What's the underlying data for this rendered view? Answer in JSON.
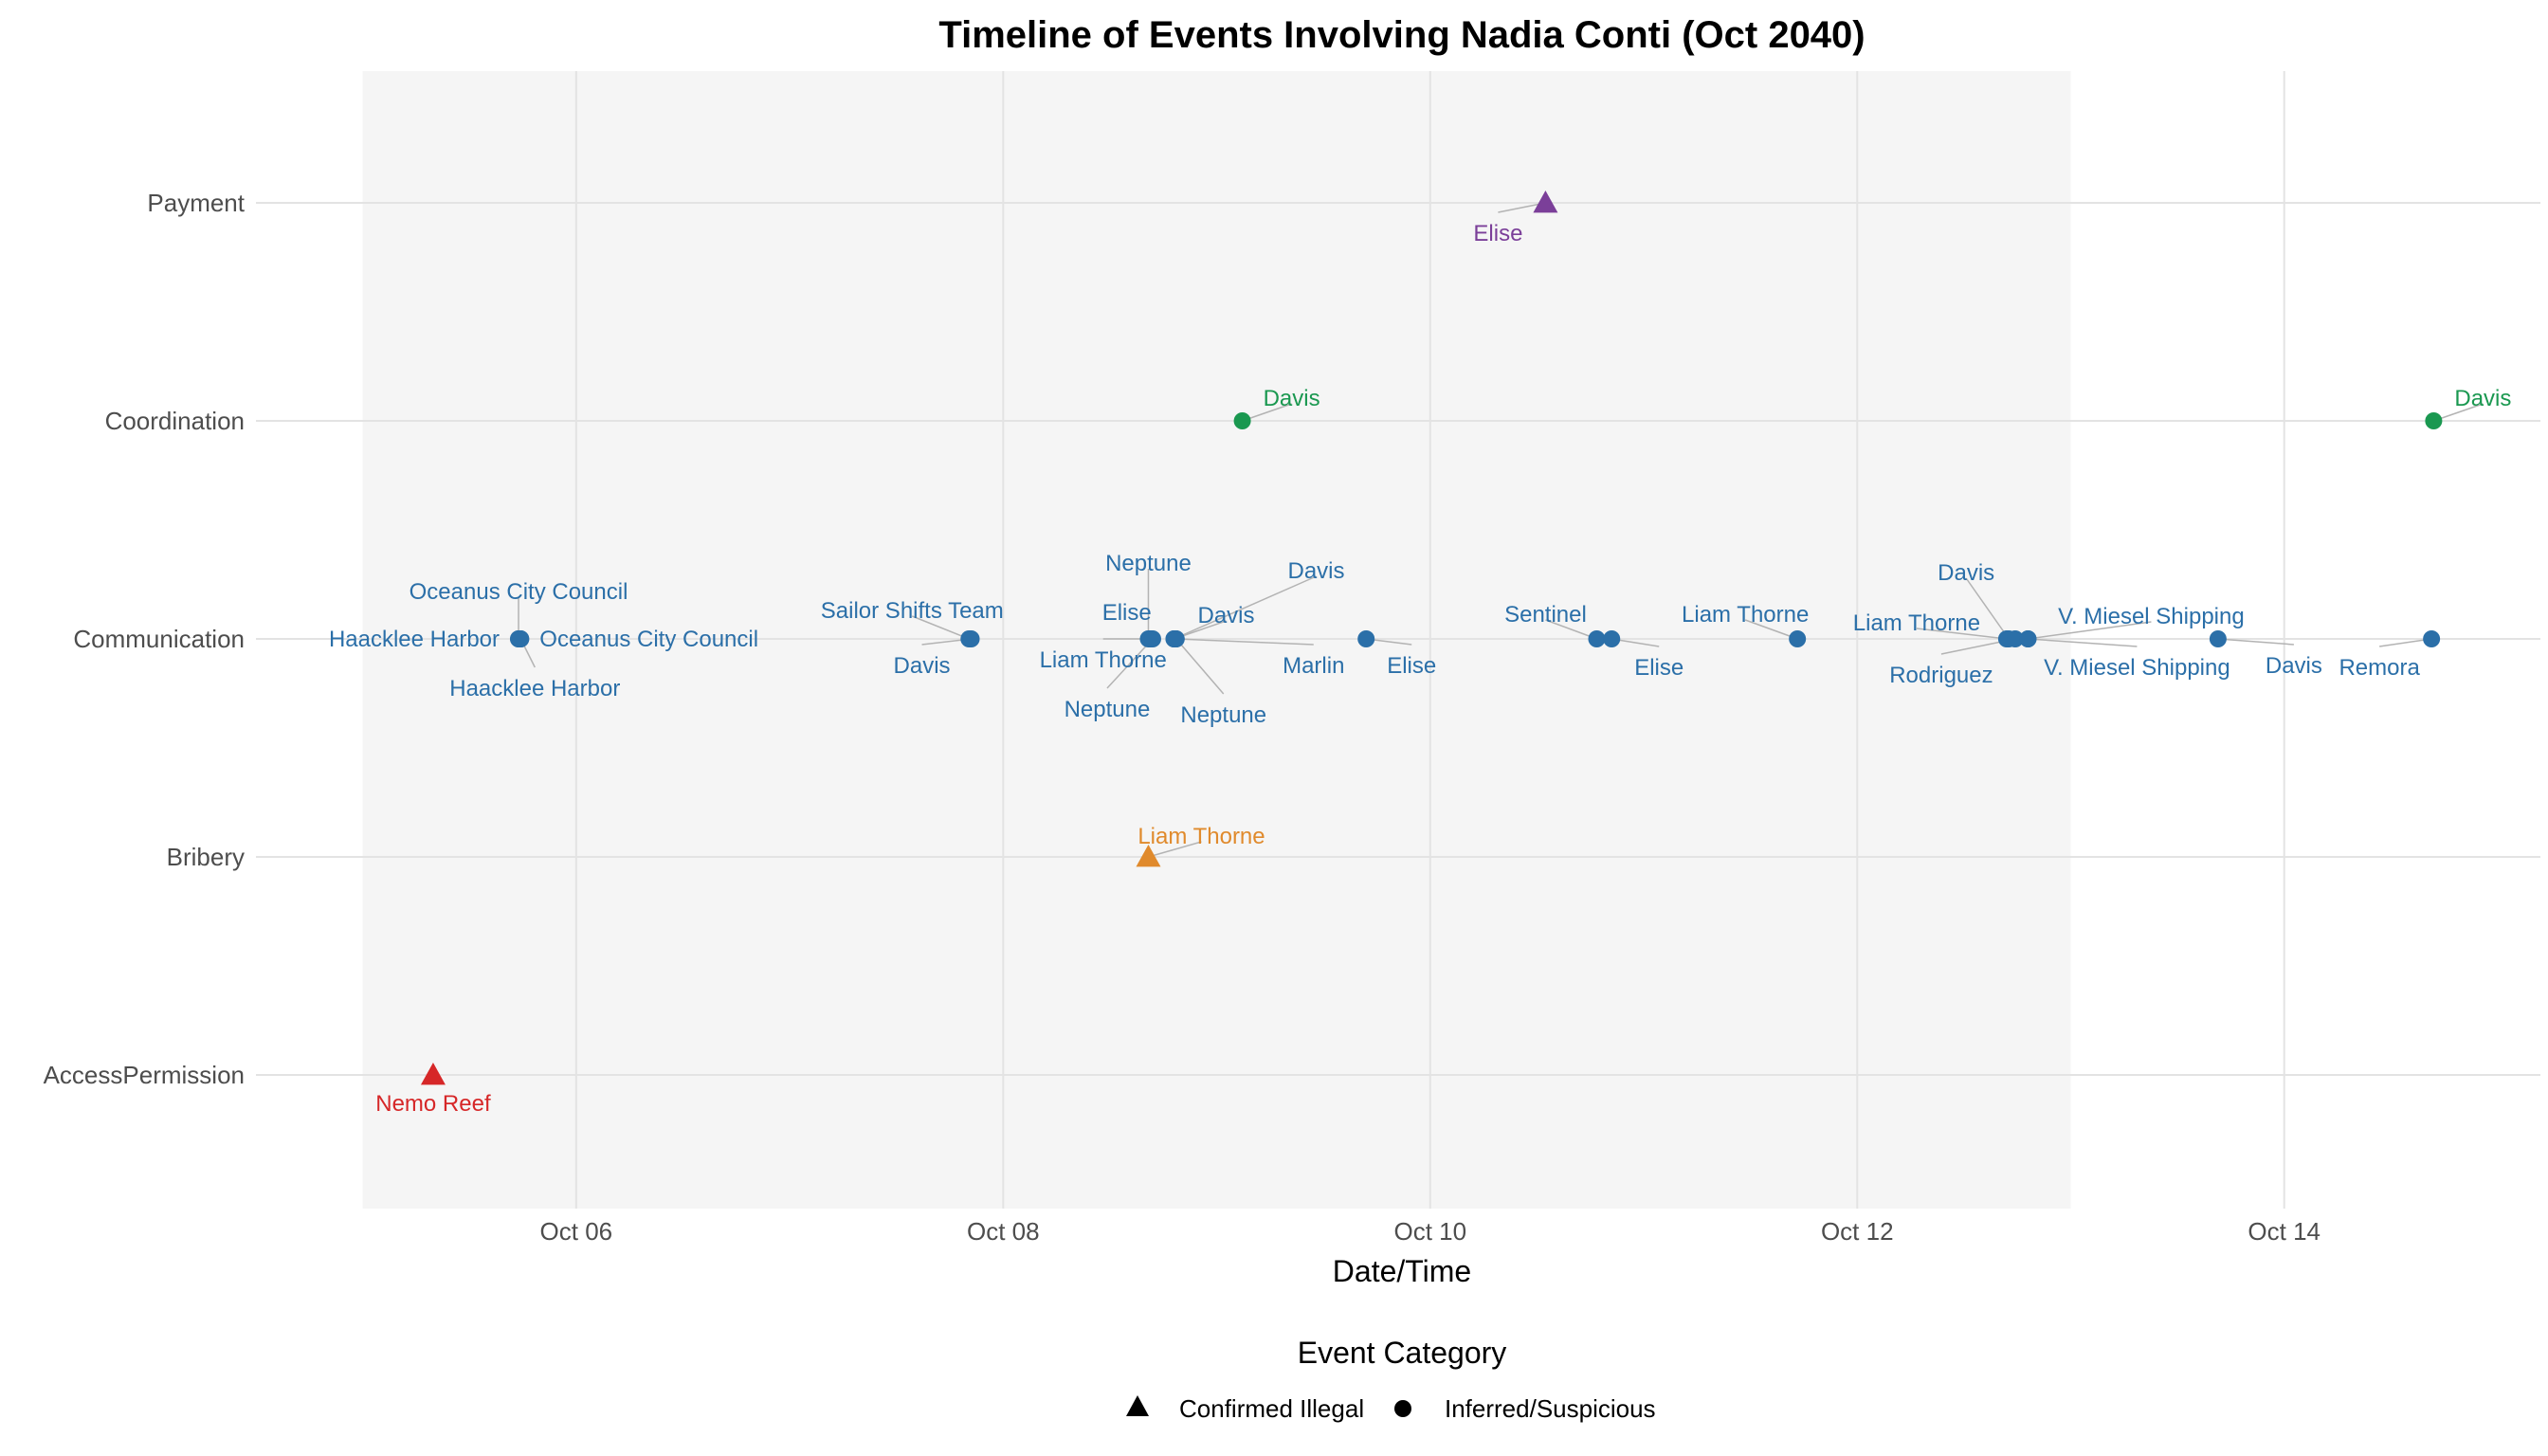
{
  "chart_data": {
    "type": "scatter",
    "title": "Timeline of Events Involving Nadia Conti (Oct 2040)",
    "xlabel": "Date/Time",
    "ylabel": "",
    "x_ticks": [
      "Oct 06",
      "Oct 08",
      "Oct 10",
      "Oct 12",
      "Oct 14"
    ],
    "x_tick_days": [
      6,
      8,
      10,
      12,
      14
    ],
    "xlim_days": [
      4.5,
      15.2
    ],
    "highlight_range_days": [
      5.0,
      13.0
    ],
    "categories": [
      "Payment",
      "Coordination",
      "Communication",
      "Bribery",
      "AccessPermission"
    ],
    "legend": {
      "title": "Event Category",
      "position": "bottom",
      "items": [
        {
          "label": "Confirmed Illegal",
          "shape": "triangle"
        },
        {
          "label": "Inferred/Suspicious",
          "shape": "circle"
        }
      ]
    },
    "colors": {
      "Payment": "#7b3f99",
      "Coordination": "#1a9850",
      "Communication": "#2b6fa8",
      "Bribery": "#e08a2c",
      "AccessPermission": "#d62728",
      "panel_bg": "#f5f5f5",
      "grid": "#e3e3e3",
      "leader": "#b3b3b3"
    },
    "grid": true,
    "points": [
      {
        "day": 5.33,
        "category": "AccessPermission",
        "shape": "triangle",
        "label": "Nemo Reef"
      },
      {
        "day": 5.73,
        "category": "Communication",
        "shape": "circle",
        "label": "Haacklee Harbor"
      },
      {
        "day": 5.73,
        "category": "Communication",
        "shape": "circle",
        "label": "Oceanus City Council"
      },
      {
        "day": 5.74,
        "category": "Communication",
        "shape": "circle",
        "label": "Oceanus City Council"
      },
      {
        "day": 5.74,
        "category": "Communication",
        "shape": "circle",
        "label": "Haacklee Harbor"
      },
      {
        "day": 7.84,
        "category": "Communication",
        "shape": "circle",
        "label": "Sailor Shifts Team"
      },
      {
        "day": 7.85,
        "category": "Communication",
        "shape": "circle",
        "label": "Davis"
      },
      {
        "day": 8.68,
        "category": "Bribery",
        "shape": "triangle",
        "label": "Liam Thorne"
      },
      {
        "day": 8.68,
        "category": "Communication",
        "shape": "circle",
        "label": "Neptune"
      },
      {
        "day": 8.69,
        "category": "Communication",
        "shape": "circle",
        "label": "Elise"
      },
      {
        "day": 8.69,
        "category": "Communication",
        "shape": "circle",
        "label": "Liam Thorne"
      },
      {
        "day": 8.7,
        "category": "Communication",
        "shape": "circle",
        "label": "Neptune"
      },
      {
        "day": 8.8,
        "category": "Communication",
        "shape": "circle",
        "label": "Davis"
      },
      {
        "day": 8.8,
        "category": "Communication",
        "shape": "circle",
        "label": "Davis"
      },
      {
        "day": 8.81,
        "category": "Communication",
        "shape": "circle",
        "label": "Marlin"
      },
      {
        "day": 8.81,
        "category": "Communication",
        "shape": "circle",
        "label": "Neptune"
      },
      {
        "day": 9.12,
        "category": "Coordination",
        "shape": "circle",
        "label": "Davis"
      },
      {
        "day": 9.7,
        "category": "Communication",
        "shape": "circle",
        "label": "Elise"
      },
      {
        "day": 10.54,
        "category": "Payment",
        "shape": "triangle",
        "label": "Elise"
      },
      {
        "day": 10.78,
        "category": "Communication",
        "shape": "circle",
        "label": "Sentinel"
      },
      {
        "day": 10.85,
        "category": "Communication",
        "shape": "circle",
        "label": "Elise"
      },
      {
        "day": 11.72,
        "category": "Communication",
        "shape": "circle",
        "label": "Liam Thorne"
      },
      {
        "day": 12.7,
        "category": "Communication",
        "shape": "circle",
        "label": "Liam Thorne"
      },
      {
        "day": 12.71,
        "category": "Communication",
        "shape": "circle",
        "label": "Davis"
      },
      {
        "day": 12.74,
        "category": "Communication",
        "shape": "circle",
        "label": "Rodriguez"
      },
      {
        "day": 12.8,
        "category": "Communication",
        "shape": "circle",
        "label": "V. Miesel Shipping"
      },
      {
        "day": 12.8,
        "category": "Communication",
        "shape": "circle",
        "label": "V. Miesel Shipping"
      },
      {
        "day": 13.69,
        "category": "Communication",
        "shape": "circle",
        "label": "Davis"
      },
      {
        "day": 14.69,
        "category": "Communication",
        "shape": "circle",
        "label": "Remora"
      },
      {
        "day": 14.7,
        "category": "Coordination",
        "shape": "circle",
        "label": "Davis"
      }
    ]
  }
}
